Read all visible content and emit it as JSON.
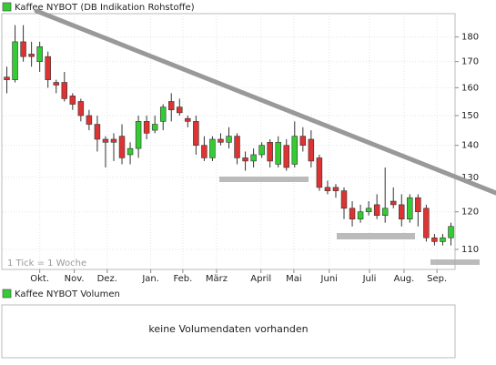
{
  "chart_data": {
    "type": "candlestick",
    "name": "Kaffee NYBOT (DB Indikation Rohstoffe)",
    "note": "1 Tick = 1 Woche",
    "open": [
      164,
      163,
      178,
      173,
      170,
      172,
      162,
      162,
      157,
      155,
      150,
      147,
      142,
      142,
      143,
      137,
      139,
      148,
      145,
      148,
      155,
      153,
      149,
      148,
      140,
      136,
      142,
      141,
      143,
      136,
      135,
      137,
      141,
      134,
      140,
      134,
      143,
      142,
      136,
      127,
      127,
      126,
      121,
      118,
      120,
      122,
      119,
      123,
      122,
      118,
      124,
      121,
      113,
      112,
      113
    ],
    "high": [
      168,
      185,
      185,
      178,
      178,
      174,
      163,
      166,
      158,
      156,
      152,
      150,
      143,
      144,
      147,
      141,
      150,
      150,
      150,
      154,
      158,
      156,
      150,
      150,
      143,
      143,
      144,
      146,
      144,
      138,
      139,
      141,
      142,
      143,
      142,
      148,
      146,
      145,
      137,
      129,
      128,
      127,
      123,
      122,
      123,
      125,
      133,
      127,
      125,
      125,
      125,
      122,
      114,
      114,
      117
    ],
    "low": [
      158,
      162,
      170,
      168,
      166,
      160,
      158,
      155,
      152,
      148,
      145,
      138,
      133,
      135,
      134,
      134,
      136,
      142,
      144,
      145,
      148,
      150,
      146,
      137,
      135,
      135,
      140,
      139,
      134,
      132,
      133,
      136,
      133,
      133,
      132,
      133,
      138,
      133,
      126,
      125,
      124,
      118,
      116,
      117,
      119,
      118,
      117,
      121,
      116,
      117,
      116,
      112,
      111,
      111,
      111
    ],
    "close": [
      163,
      178,
      172,
      172,
      176,
      163,
      161,
      156,
      154,
      150,
      147,
      142,
      141,
      141,
      136,
      139,
      148,
      144,
      147,
      153,
      152,
      151,
      148,
      140,
      136,
      142,
      141,
      143,
      136,
      135,
      137,
      140,
      135,
      141,
      133,
      143,
      140,
      135,
      127,
      126,
      126,
      121,
      118,
      120,
      121,
      119,
      121,
      122,
      118,
      124,
      120,
      113,
      112,
      113,
      116
    ],
    "up_color": "#33cc33",
    "down_color": "#dd3333",
    "log_scale": true,
    "grid": true,
    "xlim": [
      -0.5,
      54.5
    ],
    "xticks": [
      {
        "value": 4.0,
        "label": "Okt."
      },
      {
        "value": 8.2,
        "label": "Nov."
      },
      {
        "value": 12.2,
        "label": "Dez."
      },
      {
        "value": 17.5,
        "label": "Jan."
      },
      {
        "value": 21.4,
        "label": "Feb."
      },
      {
        "value": 25.5,
        "label": "März"
      },
      {
        "value": 30.9,
        "label": "April"
      },
      {
        "value": 34.9,
        "label": "Mai"
      },
      {
        "value": 39.2,
        "label": "Juni"
      },
      {
        "value": 44.1,
        "label": "Juli"
      },
      {
        "value": 48.3,
        "label": "Aug."
      },
      {
        "value": 52.3,
        "label": "Sep."
      }
    ],
    "ylim": [
      105,
      190
    ],
    "yticks": [
      110,
      120,
      130,
      140,
      150,
      160,
      170,
      180
    ]
  },
  "volume": {
    "title": "Kaffee NYBOT Volumen",
    "message": "keine Volumendaten vorhanden"
  }
}
